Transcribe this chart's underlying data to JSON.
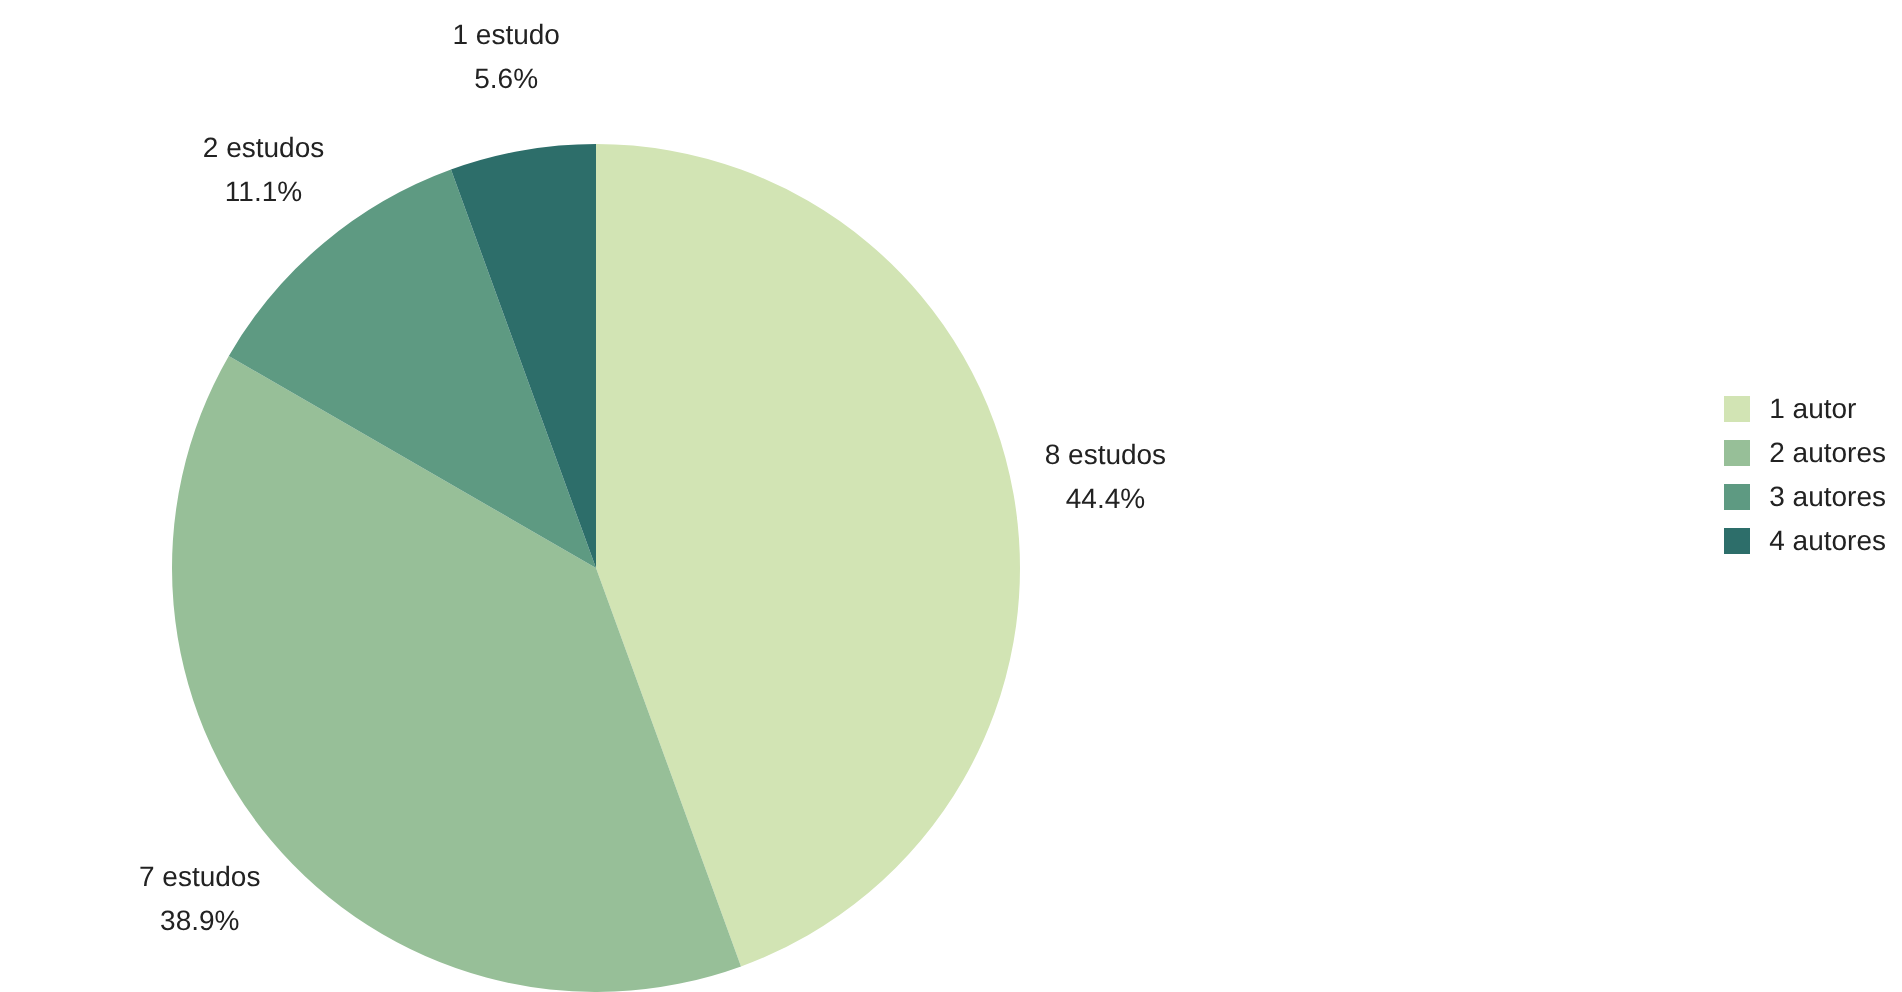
{
  "chart_data": {
    "type": "pie",
    "categories": [
      "1 autor",
      "2 autores",
      "3 autores",
      "4 autores"
    ],
    "values": [
      8,
      7,
      2,
      1
    ],
    "colors": [
      "#d2e4b4",
      "#97bf98",
      "#5e9a82",
      "#2d6e6a"
    ],
    "value_labels": [
      "8 estudos\n44.4%",
      "7 estudos\n38.9%",
      "2 estudos\n11.1%",
      "1 estudo\n5.6%"
    ],
    "legend": "right"
  }
}
